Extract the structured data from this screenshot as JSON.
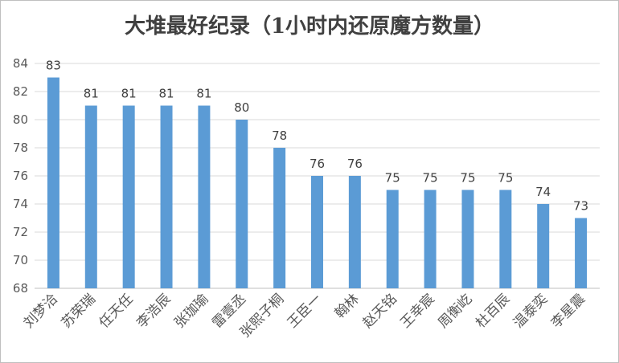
{
  "chart_data": {
    "type": "bar",
    "title": "大堆最好纪录（1小时内还原魔方数量）",
    "xlabel": "",
    "ylabel": "",
    "categories": [
      "刘梦洽",
      "苏荣瑞",
      "任天任",
      "李浩辰",
      "张珈瑜",
      "雷壹丞",
      "张熙子桐",
      "王臣一",
      "翰林",
      "赵天铭",
      "王幸宸",
      "周衡屹",
      "杜百辰",
      "温泰奕",
      "李星震"
    ],
    "values": [
      83,
      81,
      81,
      81,
      81,
      80,
      78,
      76,
      76,
      75,
      75,
      75,
      75,
      74,
      73
    ],
    "ylim": [
      68,
      84
    ],
    "yticks": [
      68,
      70,
      72,
      74,
      76,
      78,
      80,
      82,
      84
    ],
    "grid": true,
    "legend": "none",
    "bar_color": "#5b9bd5"
  }
}
